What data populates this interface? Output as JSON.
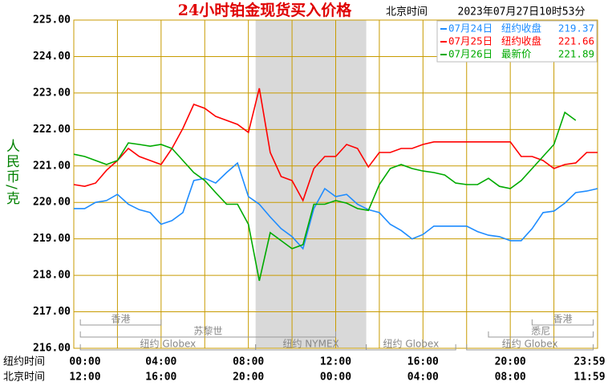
{
  "chart_data": {
    "type": "line",
    "title": "24小时铂金现货买入价格",
    "subtitle": "北京时间",
    "timestamp": "2023年07月27日10时53分",
    "y_label": "人民币/克",
    "x_row_labels": [
      "纽约时间",
      "北京时间"
    ],
    "x": [
      0,
      0.5,
      1,
      1.5,
      2,
      2.5,
      3,
      3.5,
      4,
      4.5,
      5,
      5.5,
      6,
      6.5,
      7,
      7.5,
      8,
      8.5,
      9,
      9.5,
      10,
      10.5,
      11,
      11.5,
      12,
      12.5,
      13,
      13.5,
      14,
      14.5,
      15,
      15.5,
      16,
      16.5,
      17,
      17.5,
      18,
      18.5,
      19,
      19.5,
      20,
      20.5,
      21,
      21.5,
      22,
      22.5,
      23,
      23.5,
      24
    ],
    "series": [
      {
        "name": "07月24日",
        "close_label": "纽约收盘",
        "close_value": 219.37,
        "color": "#1e8cff",
        "values": [
          219.83,
          219.83,
          220.0,
          220.05,
          220.22,
          219.95,
          219.8,
          219.72,
          219.4,
          219.5,
          219.72,
          220.6,
          220.66,
          220.53,
          220.82,
          221.08,
          220.16,
          219.95,
          219.6,
          219.28,
          219.06,
          218.73,
          219.83,
          220.38,
          220.16,
          220.22,
          219.95,
          219.8,
          219.72,
          219.4,
          219.23,
          219.0,
          219.12,
          219.35,
          219.35,
          219.35,
          219.35,
          219.2,
          219.1,
          219.06,
          218.95,
          218.95,
          219.28,
          219.72,
          219.76,
          219.98,
          220.27,
          220.31,
          220.38
        ]
      },
      {
        "name": "07月25日",
        "close_label": "纽约收盘",
        "close_value": 221.66,
        "color": "#ff0000",
        "values": [
          220.49,
          220.44,
          220.53,
          220.88,
          221.15,
          221.48,
          221.26,
          221.15,
          221.04,
          221.48,
          222.03,
          222.69,
          222.58,
          222.36,
          222.25,
          222.14,
          221.92,
          223.13,
          221.37,
          220.71,
          220.6,
          220.05,
          220.93,
          221.26,
          221.26,
          221.59,
          221.48,
          220.97,
          221.37,
          221.37,
          221.48,
          221.48,
          221.59,
          221.66,
          221.66,
          221.66,
          221.66,
          221.66,
          221.66,
          221.66,
          221.66,
          221.26,
          221.26,
          221.15,
          220.93,
          221.04,
          221.08,
          221.37,
          221.37
        ]
      },
      {
        "name": "07月26日",
        "close_label": "最新价",
        "close_value": 221.89,
        "color": "#00aa00",
        "values": [
          221.32,
          221.26,
          221.15,
          221.04,
          221.15,
          221.63,
          221.59,
          221.54,
          221.59,
          221.48,
          221.15,
          220.82,
          220.6,
          220.27,
          219.95,
          219.95,
          219.4,
          217.85,
          219.17,
          218.95,
          218.73,
          218.84,
          219.95,
          219.95,
          220.05,
          219.98,
          219.83,
          219.78,
          220.49,
          220.93,
          221.04,
          220.93,
          220.86,
          220.82,
          220.75,
          220.53,
          220.49,
          220.49,
          220.66,
          220.44,
          220.38,
          220.6,
          220.93,
          221.26,
          221.59,
          222.47,
          222.25,
          null,
          null
        ]
      }
    ],
    "xlim": [
      0,
      24
    ],
    "ylim": [
      216,
      225
    ],
    "yticks": [
      {
        "value": 216,
        "label": "216.00"
      },
      {
        "value": 217,
        "label": "217.00"
      },
      {
        "value": 218,
        "label": "218.00"
      },
      {
        "value": 219,
        "label": "219.00"
      },
      {
        "value": 220,
        "label": "220.00"
      },
      {
        "value": 221,
        "label": "221.00"
      },
      {
        "value": 222,
        "label": "222.00"
      },
      {
        "value": 223,
        "label": "223.00"
      },
      {
        "value": 224,
        "label": "224.00"
      },
      {
        "value": 225,
        "label": "225.00"
      }
    ],
    "xticks": [
      {
        "value": 0,
        "label": "00:00"
      },
      {
        "value": 4,
        "label": "04:00"
      },
      {
        "value": 8,
        "label": "08:00"
      },
      {
        "value": 12,
        "label": "12:00"
      },
      {
        "value": 16,
        "label": "16:00"
      },
      {
        "value": 20,
        "label": "20:00"
      },
      {
        "value": 23.983,
        "label": "23:59"
      }
    ],
    "xticks_beijing": [
      {
        "value": 0,
        "label": "12:00"
      },
      {
        "value": 4,
        "label": "16:00"
      },
      {
        "value": 8,
        "label": "20:00"
      },
      {
        "value": 12,
        "label": "00:00"
      },
      {
        "value": 16,
        "label": "04:00"
      },
      {
        "value": 20,
        "label": "08:00"
      },
      {
        "value": 23.983,
        "label": "11:59"
      }
    ],
    "x_grid_step": 2,
    "highlight_xrange": [
      8.33,
      13.4
    ],
    "sessions": [
      {
        "label": "香港",
        "start": 0.3,
        "end": 4.0,
        "row": 1
      },
      {
        "label": "苏黎世",
        "start": 0.3,
        "end": 12.0,
        "row": 2
      },
      {
        "label": "纽约 Globex",
        "start": 0.3,
        "end": 8.33,
        "row": 3
      },
      {
        "label": "纽约 NYMEX",
        "start": 8.33,
        "end": 13.4,
        "row": 3
      },
      {
        "label": "纽约 Globex",
        "start": 13.4,
        "end": 17.5,
        "row": 3
      },
      {
        "label": "悉尼",
        "start": 19.0,
        "end": 23.8,
        "row": 2
      },
      {
        "label": "香港",
        "start": 21.0,
        "end": 23.8,
        "row": 1
      },
      {
        "label": "纽约 Globex",
        "start": 18.0,
        "end": 23.8,
        "row": 3
      }
    ],
    "grid": true,
    "legend": "top-right"
  }
}
